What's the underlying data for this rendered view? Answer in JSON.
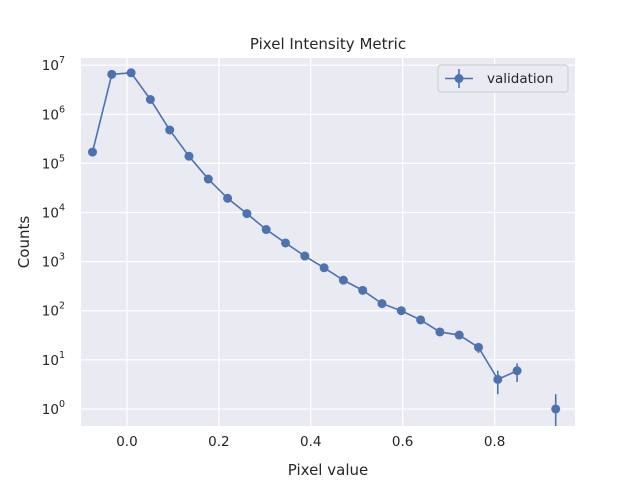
{
  "chart_data": {
    "type": "scatter",
    "title": "Pixel Intensity Metric",
    "xlabel": "Pixel value",
    "ylabel": "Counts",
    "xlim": [
      -0.1,
      0.975
    ],
    "ylim": [
      0.45,
      14000000
    ],
    "yscale": "log",
    "grid": true,
    "legend_position": "top-right",
    "x_ticks": [
      {
        "value": 0.0,
        "label": "0.0"
      },
      {
        "value": 0.2,
        "label": "0.2"
      },
      {
        "value": 0.4,
        "label": "0.4"
      },
      {
        "value": 0.6,
        "label": "0.6"
      },
      {
        "value": 0.8,
        "label": "0.8"
      }
    ],
    "y_ticks": [
      {
        "value": 1,
        "base": "10",
        "exp": "0"
      },
      {
        "value": 10,
        "base": "10",
        "exp": "1"
      },
      {
        "value": 100,
        "base": "10",
        "exp": "2"
      },
      {
        "value": 1000,
        "base": "10",
        "exp": "3"
      },
      {
        "value": 10000,
        "base": "10",
        "exp": "4"
      },
      {
        "value": 100000,
        "base": "10",
        "exp": "5"
      },
      {
        "value": 1000000,
        "base": "10",
        "exp": "6"
      },
      {
        "value": 10000000,
        "base": "10",
        "exp": "7"
      }
    ],
    "series": [
      {
        "name": "validation",
        "color": "#4c72b0",
        "style": "line-markers-errorbars",
        "x": [
          -0.075,
          -0.033,
          0.009,
          0.051,
          0.093,
          0.135,
          0.177,
          0.219,
          0.261,
          0.303,
          0.345,
          0.387,
          0.429,
          0.471,
          0.513,
          0.555,
          0.597,
          0.639,
          0.681,
          0.723,
          0.765,
          0.807,
          0.849
        ],
        "y": [
          170000,
          6500000,
          7000000,
          2000000,
          480000,
          140000,
          48000,
          19500,
          9500,
          4500,
          2400,
          1300,
          750,
          420,
          260,
          140,
          100,
          65,
          37,
          32,
          18,
          4,
          6
        ],
        "yerr": [
          412,
          2550,
          2646,
          1414,
          693,
          374,
          219,
          140,
          97,
          67,
          49,
          36,
          27,
          20,
          16,
          12,
          10,
          8,
          6,
          5.7,
          4.2,
          2,
          2.45
        ]
      },
      {
        "name": "",
        "color": "#4c72b0",
        "style": "markers-errorbars",
        "x": [
          0.933
        ],
        "y": [
          1
        ],
        "yerr": [
          1
        ]
      }
    ]
  }
}
